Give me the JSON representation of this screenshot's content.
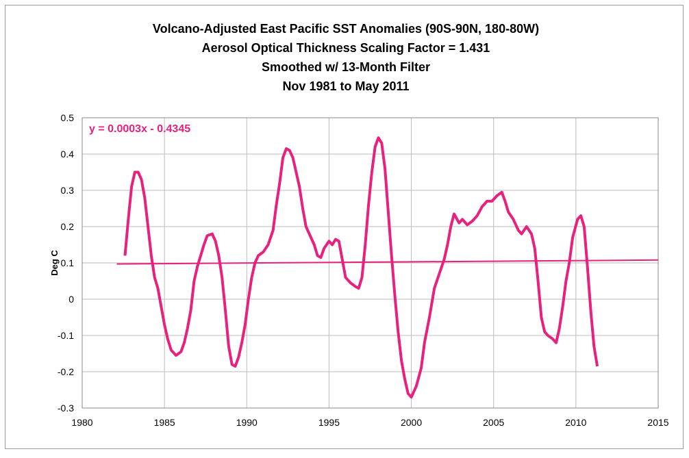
{
  "chart_data": {
    "type": "line",
    "title": "Volcano-Adjusted East Pacific SST Anomalies (90S-90N, 180-80W)",
    "subtitle": [
      "Aerosol Optical Thickness Scaling Factor = 1.431",
      "Smoothed w/ 13-Month Filter",
      "Nov 1981 to May 2011"
    ],
    "ylabel": "Deg C",
    "annotation": "y = 0.0003x - 0.4345",
    "xlim": [
      1980,
      2015
    ],
    "xticks": [
      1980,
      1985,
      1990,
      1995,
      2000,
      2005,
      2010,
      2015
    ],
    "ylim": [
      -0.3,
      0.5
    ],
    "yticks": [
      -0.3,
      -0.2,
      -0.1,
      0,
      0.1,
      0.2,
      0.3,
      0.4,
      0.5
    ],
    "grid": true,
    "series": [
      {
        "color": "#e8207e",
        "x": [
          1982.6,
          1982.8,
          1983.0,
          1983.2,
          1983.4,
          1983.6,
          1983.8,
          1984.0,
          1984.2,
          1984.4,
          1984.6,
          1984.8,
          1985.0,
          1985.2,
          1985.4,
          1985.7,
          1986.0,
          1986.2,
          1986.4,
          1986.6,
          1986.8,
          1987.0,
          1987.2,
          1987.4,
          1987.6,
          1987.9,
          1988.1,
          1988.3,
          1988.5,
          1988.7,
          1988.9,
          1989.1,
          1989.3,
          1989.5,
          1989.7,
          1989.9,
          1990.1,
          1990.3,
          1990.5,
          1990.7,
          1991.0,
          1991.3,
          1991.6,
          1991.8,
          1992.0,
          1992.2,
          1992.4,
          1992.6,
          1992.8,
          1993.0,
          1993.2,
          1993.4,
          1993.6,
          1993.9,
          1994.1,
          1994.3,
          1994.5,
          1994.7,
          1995.0,
          1995.2,
          1995.4,
          1995.6,
          1995.8,
          1996.0,
          1996.3,
          1996.6,
          1996.8,
          1997.0,
          1997.2,
          1997.4,
          1997.6,
          1997.8,
          1998.0,
          1998.2,
          1998.4,
          1998.6,
          1998.8,
          1999.0,
          1999.2,
          1999.4,
          1999.6,
          1999.8,
          2000.0,
          2000.3,
          2000.6,
          2000.8,
          2001.1,
          2001.4,
          2001.7,
          2002.0,
          2002.2,
          2002.4,
          2002.6,
          2002.9,
          2003.1,
          2003.4,
          2003.7,
          2004.0,
          2004.3,
          2004.6,
          2004.9,
          2005.2,
          2005.5,
          2005.7,
          2005.9,
          2006.2,
          2006.5,
          2006.7,
          2007.0,
          2007.3,
          2007.5,
          2007.7,
          2007.9,
          2008.1,
          2008.3,
          2008.6,
          2008.8,
          2009.0,
          2009.2,
          2009.4,
          2009.6,
          2009.8,
          2010.1,
          2010.3,
          2010.5,
          2010.7,
          2010.9,
          2011.1,
          2011.3
        ],
        "values": [
          0.12,
          0.22,
          0.31,
          0.35,
          0.35,
          0.33,
          0.28,
          0.2,
          0.12,
          0.06,
          0.03,
          -0.02,
          -0.07,
          -0.11,
          -0.14,
          -0.155,
          -0.145,
          -0.12,
          -0.08,
          -0.03,
          0.05,
          0.09,
          0.12,
          0.15,
          0.175,
          0.18,
          0.16,
          0.12,
          0.06,
          -0.03,
          -0.13,
          -0.18,
          -0.185,
          -0.16,
          -0.12,
          -0.07,
          0.0,
          0.06,
          0.1,
          0.12,
          0.13,
          0.15,
          0.19,
          0.26,
          0.32,
          0.39,
          0.415,
          0.41,
          0.39,
          0.35,
          0.31,
          0.25,
          0.2,
          0.17,
          0.15,
          0.12,
          0.115,
          0.14,
          0.16,
          0.15,
          0.165,
          0.16,
          0.11,
          0.06,
          0.045,
          0.035,
          0.03,
          0.06,
          0.15,
          0.26,
          0.35,
          0.42,
          0.445,
          0.43,
          0.36,
          0.24,
          0.12,
          0.01,
          -0.09,
          -0.17,
          -0.22,
          -0.26,
          -0.27,
          -0.24,
          -0.19,
          -0.12,
          -0.05,
          0.03,
          0.07,
          0.11,
          0.15,
          0.2,
          0.235,
          0.21,
          0.22,
          0.205,
          0.215,
          0.23,
          0.255,
          0.27,
          0.27,
          0.285,
          0.295,
          0.27,
          0.24,
          0.22,
          0.19,
          0.18,
          0.2,
          0.18,
          0.14,
          0.05,
          -0.05,
          -0.09,
          -0.1,
          -0.11,
          -0.12,
          -0.08,
          -0.02,
          0.05,
          0.1,
          0.17,
          0.22,
          0.23,
          0.2,
          0.09,
          -0.03,
          -0.13,
          -0.185
        ]
      },
      {
        "color": "#e8207e",
        "x": [
          1982.1,
          2015
        ],
        "values": [
          0.097,
          0.108
        ]
      }
    ]
  }
}
